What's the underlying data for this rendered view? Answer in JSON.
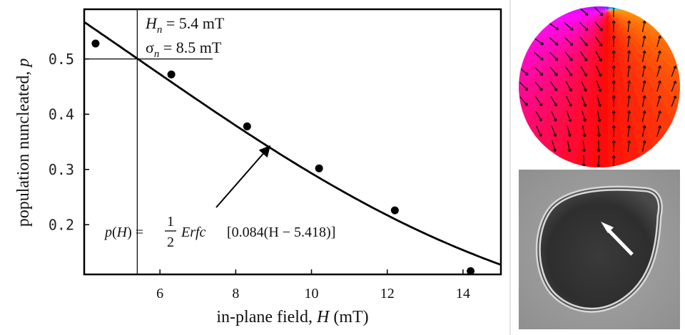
{
  "chart_data": {
    "type": "scatter",
    "xlabel_prefix": "in-plane field, ",
    "xlabel_var": "H",
    "xlabel_unit": " (mT)",
    "ylabel_prefix": "population nuncleated, ",
    "ylabel_var": "p",
    "xlim": [
      4,
      15
    ],
    "ylim": [
      0.11,
      0.59
    ],
    "xticks": [
      6,
      8,
      10,
      12,
      14
    ],
    "yticks": [
      0.2,
      0.3,
      0.4,
      0.5
    ],
    "ytick_labels": [
      "0.2",
      "0.3",
      "0.4",
      "0.5"
    ],
    "points": [
      {
        "x": 4.3,
        "y": 0.528
      },
      {
        "x": 6.3,
        "y": 0.472
      },
      {
        "x": 8.3,
        "y": 0.378
      },
      {
        "x": 10.2,
        "y": 0.302
      },
      {
        "x": 12.2,
        "y": 0.226
      },
      {
        "x": 14.2,
        "y": 0.116
      }
    ],
    "fit": {
      "a": 0.084,
      "h0": 5.418,
      "xrange": [
        4,
        15
      ]
    },
    "reference": {
      "x": 5.4,
      "y": 0.5
    },
    "annotations": {
      "Hn_sym": "H",
      "Hn_sub": "n",
      "Hn_val": " = 5.4 mT",
      "sn_sym": "σ",
      "sn_sub": "n",
      "sn_val": " = 8.5 mT",
      "formula_lhs": "p(H) = ",
      "formula_num": "1",
      "formula_den": "2",
      "formula_func": "Erfc",
      "formula_arg": "[0.084(H − 5.418)]",
      "arrow_target": {
        "x": 8.9,
        "y": 0.35
      }
    }
  }
}
